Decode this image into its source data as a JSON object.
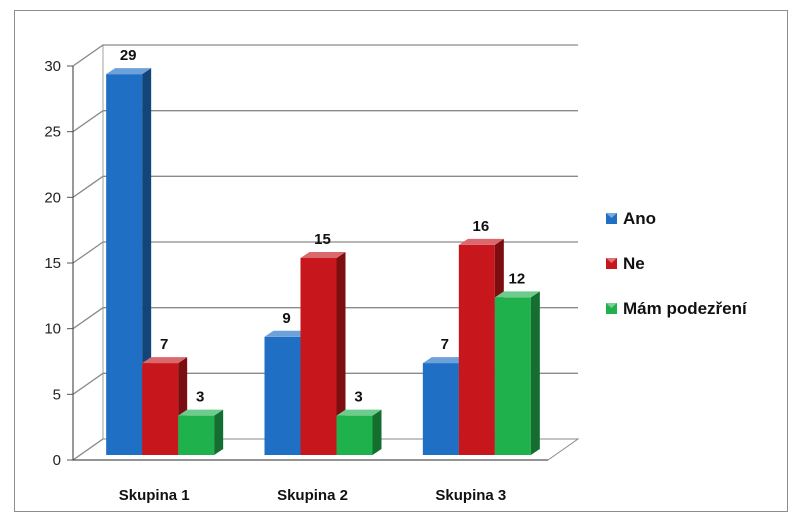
{
  "chart_data": {
    "type": "bar",
    "title": "",
    "xlabel": "",
    "ylabel": "",
    "categories": [
      "Skupina 1",
      "Skupina 2",
      "Skupina 3"
    ],
    "series": [
      {
        "name": "Ano",
        "values": [
          29,
          9,
          7
        ],
        "color": "#1f6fc5"
      },
      {
        "name": "Ne",
        "values": [
          7,
          15,
          16
        ],
        "color": "#c8161d"
      },
      {
        "name": "Mám podezření",
        "values": [
          3,
          3,
          12
        ],
        "color": "#1fb14c"
      }
    ],
    "ylim": [
      0,
      30
    ],
    "yticks": [
      0,
      5,
      10,
      15,
      20,
      25,
      30
    ],
    "grid": true,
    "legend_position": "right",
    "style": "3d-clustered-column"
  }
}
